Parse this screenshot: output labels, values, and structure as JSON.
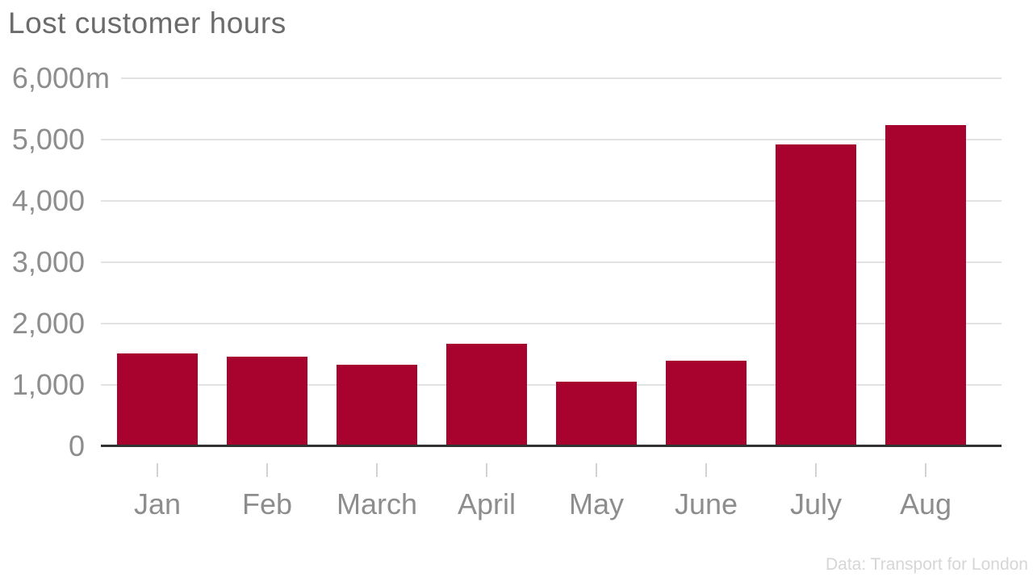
{
  "title": "Lost customer hours",
  "source": "Data: Transport for London",
  "colors": {
    "bar": "#a8022f",
    "gridline": "#e2e2e2",
    "axis_line": "#333333",
    "x_tick": "#d2d2d2",
    "title_text": "#6b6b6b",
    "axis_label_text": "#8d8d8d",
    "source_text": "#d6d6d6",
    "background": "#ffffff"
  },
  "chart_data": {
    "type": "bar",
    "title": "Lost customer hours",
    "categories": [
      "Jan",
      "Feb",
      "March",
      "April",
      "May",
      "June",
      "July",
      "Aug"
    ],
    "values": [
      1510,
      1460,
      1330,
      1670,
      1050,
      1400,
      4920,
      5240
    ],
    "xlabel": "",
    "ylabel": "",
    "unit_suffix": "m",
    "y_ticks": [
      0,
      1000,
      2000,
      3000,
      4000,
      5000,
      6000
    ],
    "y_tick_labels": [
      "0",
      "1,000",
      "2,000",
      "3,000",
      "4,000",
      "5,000",
      "6,000m"
    ],
    "ylim": [
      0,
      6000
    ],
    "grid": true,
    "legend": false,
    "source": "Data: Transport for London"
  }
}
